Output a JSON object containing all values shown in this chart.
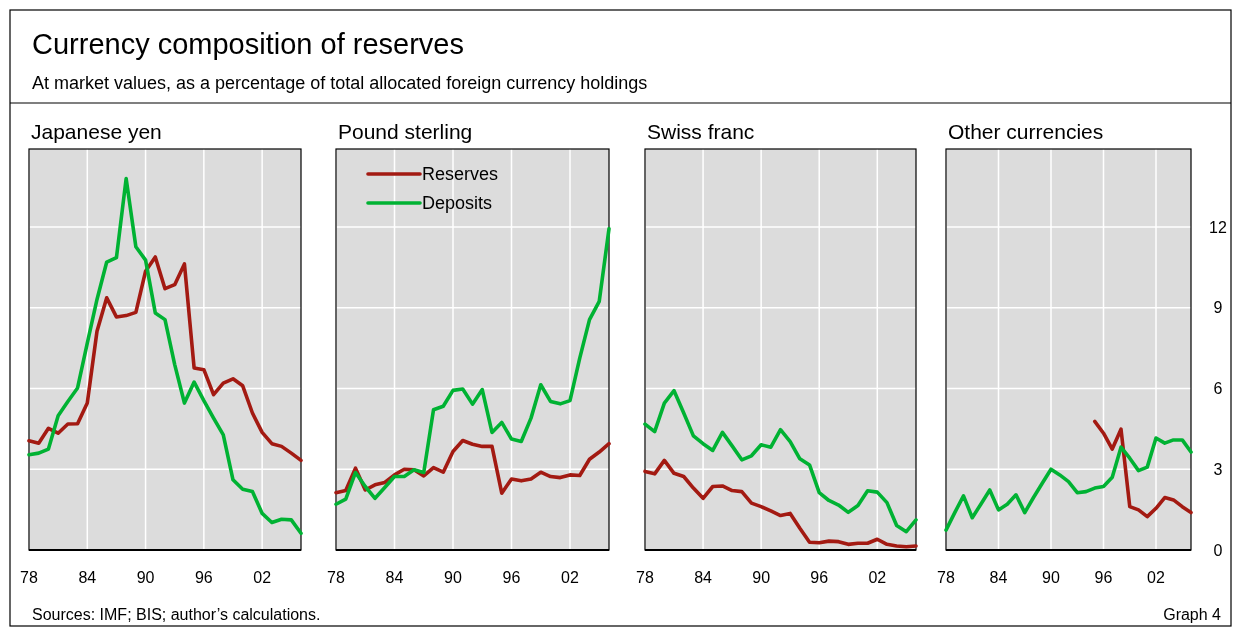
{
  "chart_data": [
    {
      "type": "line",
      "title": "Japanese yen",
      "annotations": [
        "Currency composition of reserves",
        "At market values, as a percentage of total allocated foreign currency holdings",
        "Sources: IMF; BIS; author’s calculations."
      ],
      "x": [
        1978,
        1979,
        1980,
        1981,
        1982,
        1983,
        1984,
        1985,
        1986,
        1987,
        1988,
        1989,
        1990,
        1991,
        1992,
        1993,
        1994,
        1995,
        1996,
        1997,
        1998,
        1999,
        2000,
        2001,
        2002,
        2003,
        2004,
        2005,
        2006
      ],
      "series": [
        {
          "color": "#a31a12",
          "values": [
            4.06,
            3.97,
            4.52,
            4.34,
            4.68,
            4.69,
            5.46,
            8.13,
            9.37,
            8.66,
            8.71,
            8.83,
            10.36,
            10.89,
            9.71,
            9.86,
            10.63,
            6.76,
            6.7,
            5.77,
            6.2,
            6.36,
            6.1,
            5.09,
            4.37,
            3.95,
            3.85,
            3.6,
            3.33
          ]
        },
        {
          "color": "#00b233",
          "values": [
            3.54,
            3.6,
            3.75,
            4.99,
            5.52,
            6.02,
            7.69,
            9.31,
            10.7,
            10.86,
            13.8,
            11.27,
            10.77,
            8.81,
            8.56,
            6.89,
            5.46,
            6.24,
            5.55,
            4.9,
            4.28,
            2.61,
            2.26,
            2.17,
            1.36,
            1.02,
            1.14,
            1.12,
            0.62
          ]
        }
      ],
      "xlim": [
        1978,
        2006
      ],
      "xticks": [
        {
          "value": 1978,
          "label": "78"
        },
        {
          "value": 1984,
          "label": "84"
        },
        {
          "value": 1990,
          "label": "90"
        },
        {
          "value": 1996,
          "label": "96"
        },
        {
          "value": 2002,
          "label": "02"
        }
      ],
      "ylim": [
        0,
        14.9
      ],
      "yticks": [
        0,
        3,
        6,
        9,
        12
      ],
      "grid": true,
      "tick_labels": "x"
    },
    {
      "type": "line",
      "title": "Pound sterling",
      "legend": "top left",
      "x": [
        1978,
        1979,
        1980,
        1981,
        1982,
        1983,
        1984,
        1985,
        1986,
        1987,
        1988,
        1989,
        1990,
        1991,
        1992,
        1993,
        1994,
        1995,
        1996,
        1997,
        1998,
        1999,
        2000,
        2001,
        2002,
        2003,
        2004,
        2005,
        2006
      ],
      "series": [
        {
          "name": "Reserves",
          "color": "#a31a12",
          "values": [
            2.13,
            2.21,
            3.04,
            2.23,
            2.42,
            2.51,
            2.79,
            3.0,
            2.98,
            2.75,
            3.06,
            2.89,
            3.66,
            4.07,
            3.93,
            3.85,
            3.85,
            2.11,
            2.64,
            2.57,
            2.64,
            2.89,
            2.73,
            2.69,
            2.79,
            2.77,
            3.37,
            3.64,
            3.95
          ]
        },
        {
          "name": "Deposits",
          "color": "#00b233",
          "values": [
            1.7,
            1.89,
            2.88,
            2.36,
            1.92,
            2.32,
            2.73,
            2.73,
            2.98,
            2.88,
            5.21,
            5.34,
            5.93,
            5.98,
            5.42,
            5.96,
            4.37,
            4.74,
            4.12,
            4.03,
            4.9,
            6.14,
            5.52,
            5.43,
            5.55,
            7.13,
            8.56,
            9.24,
            11.94
          ]
        }
      ],
      "xlim": [
        1978,
        2006
      ],
      "xticks": [
        {
          "value": 1978,
          "label": "78"
        },
        {
          "value": 1984,
          "label": "84"
        },
        {
          "value": 1990,
          "label": "90"
        },
        {
          "value": 1996,
          "label": "96"
        },
        {
          "value": 2002,
          "label": "02"
        }
      ],
      "ylim": [
        0,
        14.9
      ],
      "yticks": [
        0,
        3,
        6,
        9,
        12
      ],
      "grid": true,
      "tick_labels": "x"
    },
    {
      "type": "line",
      "title": "Swiss franc",
      "x": [
        1978,
        1979,
        1980,
        1981,
        1982,
        1983,
        1984,
        1985,
        1986,
        1987,
        1988,
        1989,
        1990,
        1991,
        1992,
        1993,
        1994,
        1995,
        1996,
        1997,
        1998,
        1999,
        2000,
        2001,
        2002,
        2003,
        2004,
        2005,
        2006
      ],
      "series": [
        {
          "color": "#a31a12",
          "values": [
            2.92,
            2.83,
            3.33,
            2.85,
            2.73,
            2.3,
            1.92,
            2.36,
            2.38,
            2.21,
            2.17,
            1.74,
            1.61,
            1.45,
            1.28,
            1.36,
            0.81,
            0.29,
            0.27,
            0.33,
            0.31,
            0.21,
            0.25,
            0.25,
            0.4,
            0.21,
            0.15,
            0.12,
            0.15
          ]
        },
        {
          "color": "#00b233",
          "values": [
            4.68,
            4.4,
            5.46,
            5.92,
            5.09,
            4.24,
            3.95,
            3.7,
            4.37,
            3.87,
            3.35,
            3.5,
            3.91,
            3.82,
            4.47,
            4.03,
            3.39,
            3.16,
            2.13,
            1.84,
            1.67,
            1.4,
            1.65,
            2.2,
            2.15,
            1.76,
            0.91,
            0.68,
            1.12
          ]
        }
      ],
      "xlim": [
        1978,
        2006
      ],
      "xticks": [
        {
          "value": 1978,
          "label": "78"
        },
        {
          "value": 1984,
          "label": "84"
        },
        {
          "value": 1990,
          "label": "90"
        },
        {
          "value": 1996,
          "label": "96"
        },
        {
          "value": 2002,
          "label": "02"
        }
      ],
      "ylim": [
        0,
        14.9
      ],
      "yticks": [
        0,
        3,
        6,
        9,
        12
      ],
      "grid": true,
      "tick_labels": "x"
    },
    {
      "type": "line",
      "title": "Other currencies",
      "annotations": [
        "Graph 4"
      ],
      "x": [
        1978,
        1979,
        1980,
        1981,
        1982,
        1983,
        1984,
        1985,
        1986,
        1987,
        1988,
        1989,
        1990,
        1991,
        1992,
        1993,
        1994,
        1995,
        1996,
        1997,
        1998,
        1999,
        2000,
        2001,
        2002,
        2003,
        2004,
        2005,
        2006
      ],
      "series": [
        {
          "color": "#a31a12",
          "values": [
            null,
            null,
            null,
            null,
            null,
            null,
            null,
            null,
            null,
            null,
            null,
            null,
            null,
            null,
            null,
            null,
            null,
            4.78,
            4.34,
            3.75,
            4.49,
            1.61,
            1.49,
            1.24,
            1.55,
            1.95,
            1.86,
            1.61,
            1.39
          ]
        },
        {
          "color": "#00b233",
          "values": [
            0.74,
            1.39,
            2.01,
            1.2,
            1.71,
            2.23,
            1.49,
            1.7,
            2.05,
            1.39,
            1.95,
            2.48,
            3.0,
            2.79,
            2.54,
            2.13,
            2.17,
            2.3,
            2.36,
            2.7,
            3.82,
            3.41,
            2.95,
            3.08,
            4.16,
            3.97,
            4.09,
            4.09,
            3.64
          ]
        }
      ],
      "xlim": [
        1978,
        2006
      ],
      "xticks": [
        {
          "value": 1978,
          "label": "78"
        },
        {
          "value": 1984,
          "label": "84"
        },
        {
          "value": 1990,
          "label": "90"
        },
        {
          "value": 1996,
          "label": "96"
        },
        {
          "value": 2002,
          "label": "02"
        }
      ],
      "ylim": [
        0,
        14.9
      ],
      "yticks": [
        0,
        3,
        6,
        9,
        12
      ],
      "grid": true
    }
  ]
}
